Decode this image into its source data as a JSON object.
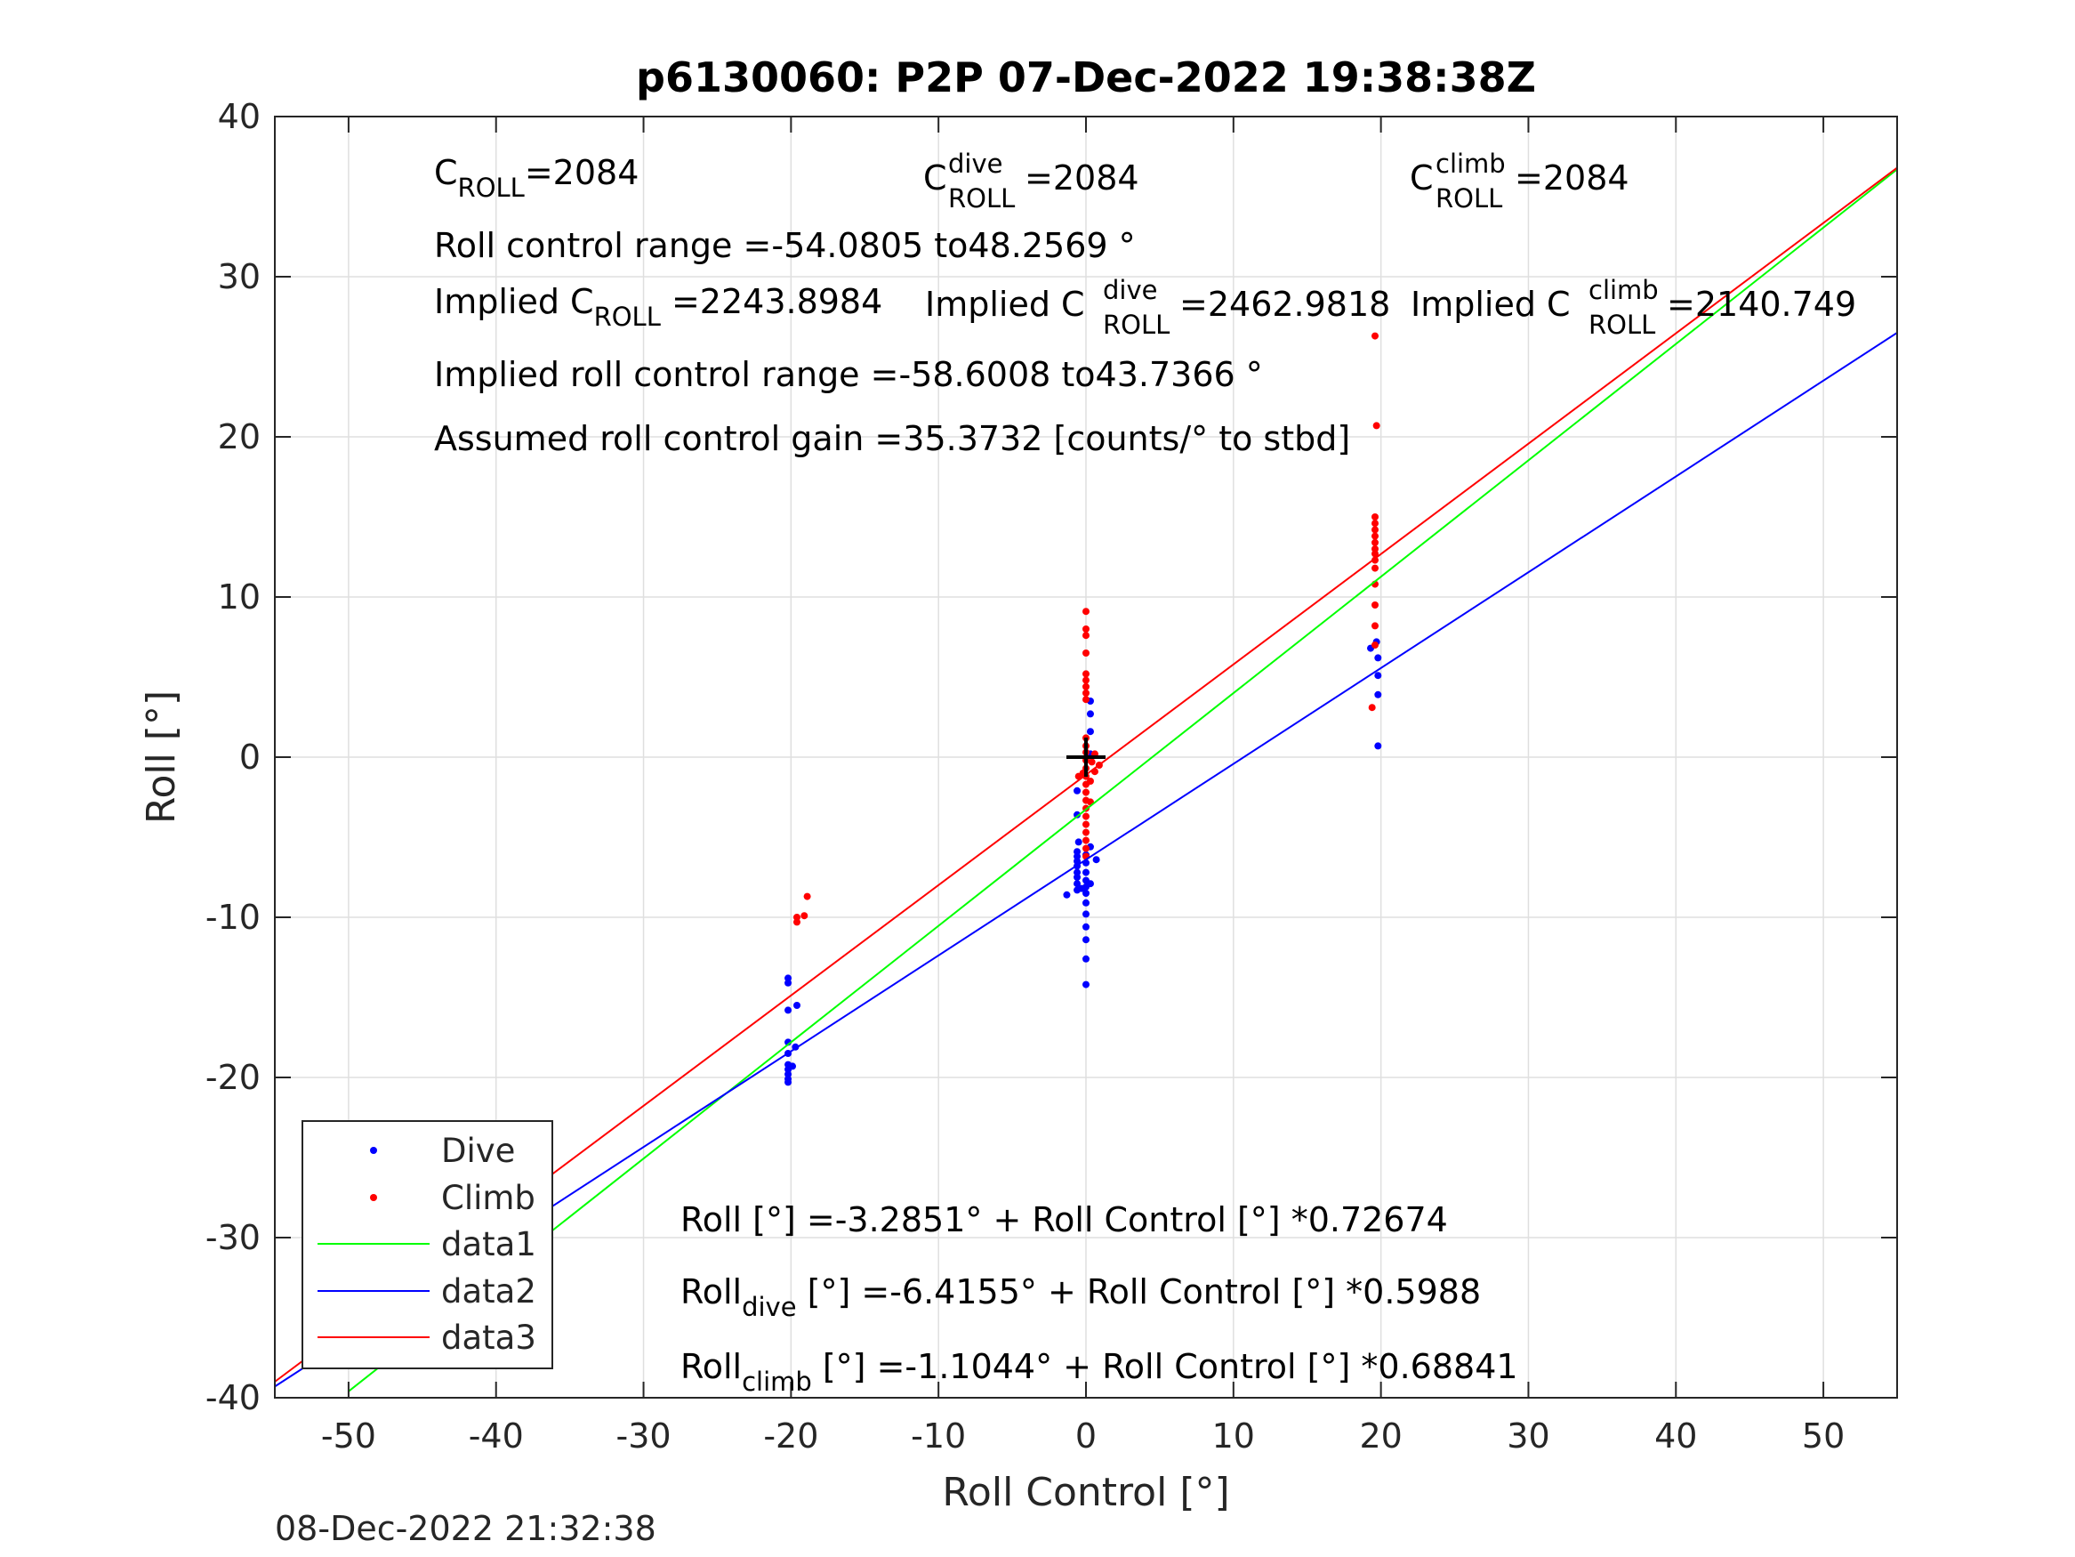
{
  "chart_data": {
    "type": "scatter",
    "title": "p6130060: P2P 07-Dec-2022 19:38:38Z",
    "xlabel": "Roll Control [°]",
    "ylabel": "Roll [°]",
    "xlim": [
      -55,
      55
    ],
    "ylim": [
      -40,
      40
    ],
    "xticks": [
      -50,
      -40,
      -30,
      -20,
      -10,
      0,
      10,
      20,
      30,
      40,
      50
    ],
    "yticks": [
      -40,
      -30,
      -20,
      -10,
      0,
      10,
      20,
      30,
      40
    ],
    "grid": true,
    "legend_position": "bottom-left",
    "timestamp": "08-Dec-2022 21:32:38",
    "annotations": {
      "c_roll": {
        "base": "C",
        "sub": "ROLL",
        "value": "=2084"
      },
      "c_roll_dive": {
        "base": "C",
        "sup": "dive",
        "sub": "ROLL",
        "value": " =2084"
      },
      "c_roll_climb": {
        "base": "C",
        "sup": "climb",
        "sub": "ROLL",
        "value": " =2084"
      },
      "roll_control_range": "Roll control range =-54.0805 to48.2569 °",
      "implied_c_roll": {
        "base": "Implied C",
        "sub": "ROLL",
        "value": " =2243.8984"
      },
      "implied_c_roll_dive": {
        "base": "Implied C",
        "sup": "dive",
        "sub": "ROLL",
        "value": " =2462.9818"
      },
      "implied_c_roll_climb": {
        "base": "Implied C",
        "sup": "climb",
        "sub": "ROLL",
        "value": " =2140.749"
      },
      "implied_roll_control_range": "Implied roll control range =-58.6008 to43.7366 °",
      "assumed_gain": "Assumed roll control gain =35.3732 [counts/° to stbd]",
      "fit_all": "Roll [°] =-3.2851° + Roll Control [°] *0.72674",
      "fit_dive": {
        "base": "Roll",
        "sub": "dive",
        "value": " [°] =-6.4155° + Roll Control [°] *0.5988"
      },
      "fit_climb": {
        "base": "Roll",
        "sub": "climb",
        "value": " [°] =-1.1044° + Roll Control [°] *0.68841"
      }
    },
    "series": [
      {
        "name": "Dive",
        "kind": "points",
        "color": "#0000ff",
        "points": [
          [
            -20.2,
            -13.8
          ],
          [
            -20.2,
            -14.1
          ],
          [
            -20.2,
            -15.8
          ],
          [
            -19.6,
            -15.5
          ],
          [
            -20.2,
            -17.8
          ],
          [
            -19.7,
            -18.1
          ],
          [
            -20.2,
            -18.5
          ],
          [
            -19.9,
            -19.3
          ],
          [
            -20.2,
            -19.2
          ],
          [
            -20.2,
            -19.5
          ],
          [
            -20.2,
            -19.8
          ],
          [
            -20.2,
            -20.1
          ],
          [
            -20.2,
            -20.3
          ],
          [
            -1.3,
            -8.6
          ],
          [
            -0.6,
            -3.6
          ],
          [
            -0.6,
            -2.1
          ],
          [
            -0.5,
            -5.3
          ],
          [
            -0.6,
            -5.9
          ],
          [
            -0.6,
            -6.2
          ],
          [
            -0.6,
            -6.5
          ],
          [
            -0.6,
            -6.8
          ],
          [
            -0.6,
            -7.2
          ],
          [
            -0.6,
            -7.5
          ],
          [
            -0.6,
            -7.9
          ],
          [
            -0.6,
            -8.3
          ],
          [
            -0.3,
            -8.2
          ],
          [
            0.0,
            -6.1
          ],
          [
            0.0,
            -6.6
          ],
          [
            0.0,
            -7.2
          ],
          [
            0.0,
            -7.7
          ],
          [
            0.0,
            -8.1
          ],
          [
            0.0,
            -8.5
          ],
          [
            0.0,
            -9.1
          ],
          [
            0.0,
            -9.8
          ],
          [
            0.0,
            -10.6
          ],
          [
            0.0,
            -11.4
          ],
          [
            0.0,
            -12.6
          ],
          [
            0.0,
            -14.2
          ],
          [
            0.3,
            -7.9
          ],
          [
            0.3,
            -5.6
          ],
          [
            0.7,
            -6.4
          ],
          [
            0.3,
            0.2
          ],
          [
            0.3,
            1.6
          ],
          [
            0.3,
            2.7
          ],
          [
            0.3,
            3.5
          ],
          [
            19.3,
            6.8
          ],
          [
            19.7,
            7.2
          ],
          [
            19.8,
            6.2
          ],
          [
            19.8,
            5.1
          ],
          [
            19.8,
            3.9
          ],
          [
            19.8,
            0.7
          ]
        ]
      },
      {
        "name": "Climb",
        "kind": "points",
        "color": "#ff0000",
        "points": [
          [
            -19.6,
            -10.3
          ],
          [
            -19.6,
            -10.0
          ],
          [
            -19.1,
            -9.9
          ],
          [
            -18.9,
            -8.7
          ],
          [
            -0.5,
            -1.2
          ],
          [
            -0.2,
            -1.0
          ],
          [
            0.0,
            9.1
          ],
          [
            0.0,
            8.0
          ],
          [
            0.0,
            7.6
          ],
          [
            0.0,
            6.5
          ],
          [
            0.0,
            5.2
          ],
          [
            0.0,
            4.8
          ],
          [
            0.0,
            4.4
          ],
          [
            0.0,
            4.0
          ],
          [
            0.0,
            3.6
          ],
          [
            0.0,
            1.2
          ],
          [
            0.0,
            0.7
          ],
          [
            0.0,
            0.3
          ],
          [
            0.0,
            -0.2
          ],
          [
            0.0,
            -0.7
          ],
          [
            0.0,
            -1.2
          ],
          [
            0.0,
            -1.7
          ],
          [
            0.0,
            -2.2
          ],
          [
            0.0,
            -2.7
          ],
          [
            0.0,
            -3.2
          ],
          [
            0.0,
            -3.7
          ],
          [
            0.0,
            -4.2
          ],
          [
            0.0,
            -4.7
          ],
          [
            0.0,
            -5.2
          ],
          [
            0.0,
            -5.7
          ],
          [
            0.0,
            -6.2
          ],
          [
            0.4,
            -0.3
          ],
          [
            0.6,
            0.2
          ],
          [
            0.3,
            -1.5
          ],
          [
            0.3,
            -2.8
          ],
          [
            0.6,
            -0.9
          ],
          [
            0.9,
            -0.5
          ],
          [
            19.6,
            26.3
          ],
          [
            19.7,
            20.7
          ],
          [
            19.6,
            15.0
          ],
          [
            19.6,
            14.6
          ],
          [
            19.6,
            14.2
          ],
          [
            19.6,
            13.8
          ],
          [
            19.6,
            13.4
          ],
          [
            19.6,
            13.0
          ],
          [
            19.6,
            12.7
          ],
          [
            19.6,
            12.3
          ],
          [
            19.6,
            11.8
          ],
          [
            19.6,
            10.8
          ],
          [
            19.6,
            9.5
          ],
          [
            19.6,
            8.2
          ],
          [
            19.6,
            7.0
          ],
          [
            19.4,
            3.1
          ]
        ]
      },
      {
        "name": "data1",
        "kind": "line",
        "color": "#00ff00",
        "x": [
          -50.0,
          55.0
        ],
        "y": [
          -39.6,
          36.7
        ]
      },
      {
        "name": "data2",
        "kind": "line",
        "color": "#0000ff",
        "x": [
          -55.0,
          55.0
        ],
        "y": [
          -39.3,
          26.5
        ]
      },
      {
        "name": "data3",
        "kind": "line",
        "color": "#ff0000",
        "x": [
          -55.0,
          55.0
        ],
        "y": [
          -39.0,
          36.8
        ]
      }
    ],
    "marker": {
      "name": "origin-cross",
      "x": 0,
      "y": 0,
      "color": "#000000"
    }
  }
}
